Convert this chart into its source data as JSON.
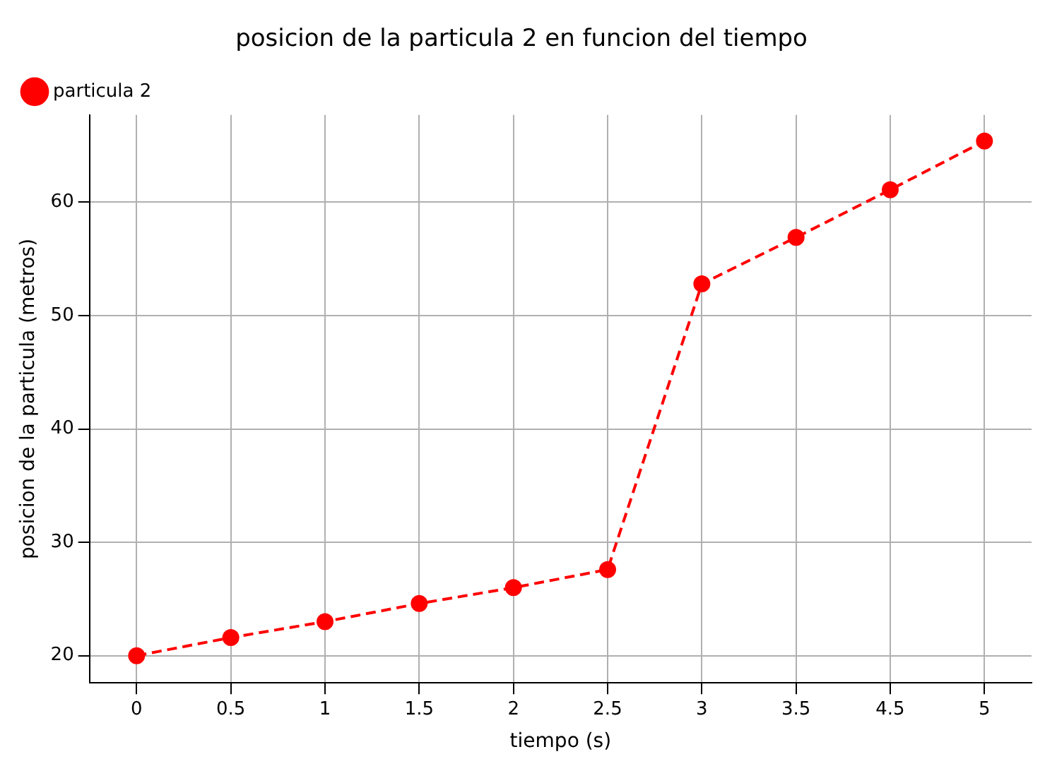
{
  "chart_data": {
    "type": "line",
    "title": "posicion de la particula 2 en funcion del tiempo",
    "xlabel": "tiempo (s)",
    "ylabel": "posicion de la particula (metros)",
    "categories": [
      "0",
      "0.5",
      "1",
      "1.5",
      "2",
      "2.5",
      "3",
      "3.5",
      "4.5",
      "5"
    ],
    "series": [
      {
        "name": "particula 2",
        "color": "#ff0000",
        "values": [
          20.0,
          21.6,
          23.0,
          24.6,
          26.0,
          27.6,
          52.8,
          56.9,
          61.1,
          65.4
        ]
      }
    ],
    "ylim": [
      17.6,
      67.7
    ],
    "yticks": [
      20,
      30,
      40,
      50,
      60
    ],
    "grid": true,
    "legend": "top left",
    "marker": "circle",
    "line_style": "dashed"
  }
}
